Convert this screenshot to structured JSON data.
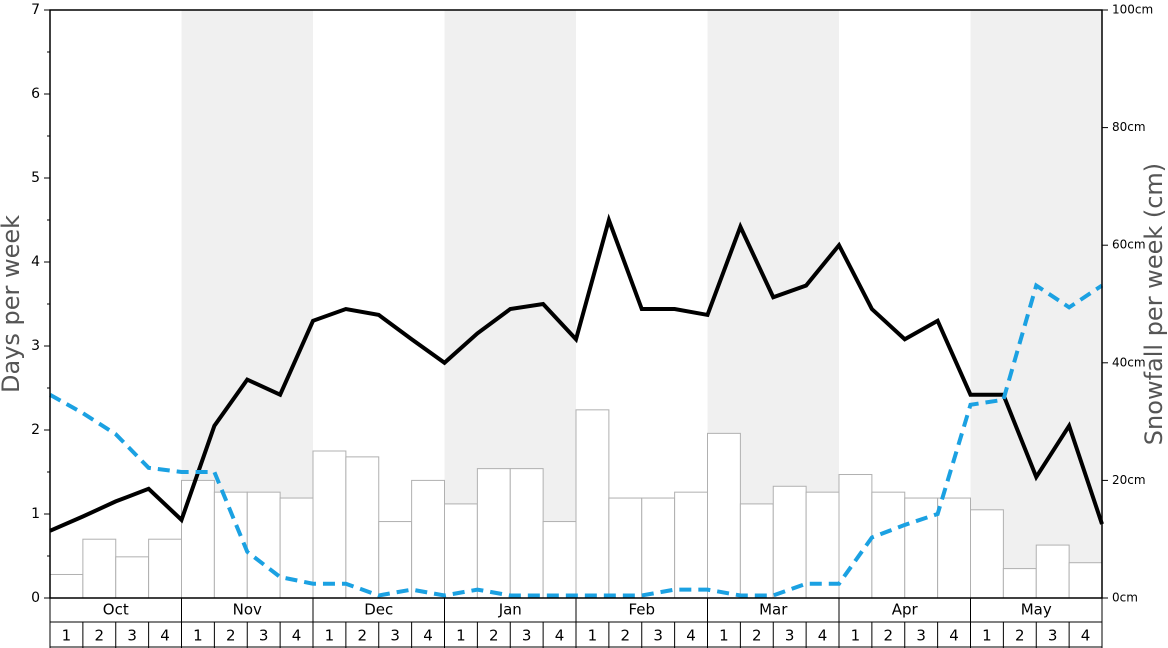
{
  "chart_data": {
    "type": "bar-line",
    "ylabel": "Days per week",
    "y2label": "Snowfall per week (cm)",
    "months": [
      "Oct",
      "Nov",
      "Dec",
      "Jan",
      "Feb",
      "Mar",
      "Apr",
      "May"
    ],
    "categories": [
      "1",
      "2",
      "3",
      "4",
      "1",
      "2",
      "3",
      "4",
      "1",
      "2",
      "3",
      "4",
      "1",
      "2",
      "3",
      "4",
      "1",
      "2",
      "3",
      "4",
      "1",
      "2",
      "3",
      "4",
      "1",
      "2",
      "3",
      "4",
      "1",
      "2",
      "3",
      "4"
    ],
    "xlim": [
      0,
      32
    ],
    "ylim": [
      0,
      7
    ],
    "yticks": [
      0,
      1,
      2,
      3,
      4,
      5,
      6,
      7
    ],
    "y2lim": [
      0,
      100
    ],
    "y2ticks": [
      {
        "value": 0,
        "label": "0cm"
      },
      {
        "value": 20,
        "label": "20cm"
      },
      {
        "value": 40,
        "label": "40cm"
      },
      {
        "value": 60,
        "label": "60cm"
      },
      {
        "value": 80,
        "label": "80cm"
      },
      {
        "value": 100,
        "label": "100cm"
      }
    ],
    "series": [
      {
        "type": "bar",
        "axis": "y2",
        "color": "#ffffff",
        "edge": "#b0b0b0",
        "values": [
          4,
          10,
          7,
          10,
          20,
          18,
          18,
          17,
          25,
          24,
          13,
          20,
          16,
          22,
          22,
          13,
          32,
          17,
          17,
          18,
          28,
          16,
          19,
          18,
          21,
          18,
          17,
          17,
          15,
          5,
          9,
          6
        ]
      },
      {
        "type": "line",
        "axis": "y",
        "color": "#000000",
        "dashed": false,
        "x": [
          0,
          1,
          2,
          3,
          4,
          5,
          6,
          7,
          8,
          9,
          10,
          11,
          12,
          13,
          14,
          15,
          16,
          17,
          18,
          19,
          20,
          21,
          22,
          23,
          24,
          25,
          26,
          27,
          28,
          29,
          30,
          31,
          32
        ],
        "values": [
          0.8,
          0.97,
          1.15,
          1.3,
          0.93,
          2.05,
          2.6,
          2.42,
          3.3,
          3.44,
          3.37,
          3.08,
          2.8,
          3.15,
          3.44,
          3.5,
          3.08,
          4.5,
          3.44,
          3.44,
          3.37,
          4.42,
          3.58,
          3.72,
          4.2,
          3.44,
          3.08,
          3.3,
          2.42,
          2.42,
          1.44,
          2.05,
          0.88
        ]
      },
      {
        "type": "line",
        "axis": "y",
        "color": "#1ba1e2",
        "dashed": true,
        "x": [
          0,
          1,
          2,
          3,
          4,
          5,
          6,
          7,
          8,
          9,
          10,
          11,
          12,
          13,
          14,
          15,
          16,
          17,
          18,
          19,
          20,
          21,
          22,
          23,
          24,
          25,
          26,
          27,
          28,
          29,
          30,
          31,
          32
        ],
        "values": [
          2.42,
          2.2,
          1.95,
          1.55,
          1.5,
          1.5,
          0.55,
          0.25,
          0.17,
          0.17,
          0.03,
          0.1,
          0.03,
          0.1,
          0.03,
          0.03,
          0.03,
          0.03,
          0.03,
          0.1,
          0.1,
          0.03,
          0.03,
          0.17,
          0.17,
          0.72,
          0.87,
          1.0,
          2.3,
          2.36,
          3.72,
          3.46,
          3.72
        ]
      }
    ]
  }
}
